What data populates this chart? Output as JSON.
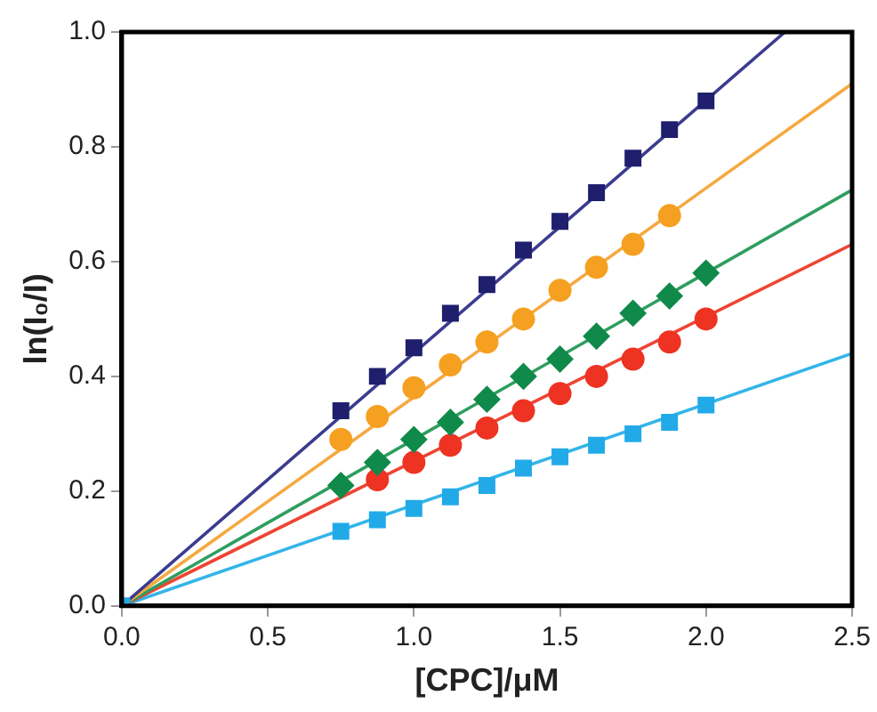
{
  "chart_data": {
    "type": "scatter",
    "xlabel": "[CPC]/μM",
    "ylabel": "ln(I₀/I)",
    "xlim": [
      0,
      2.5
    ],
    "xticks": [
      {
        "value": 0,
        "label": "0.0"
      },
      {
        "value": 0.5,
        "label": "0.5"
      },
      {
        "value": 1,
        "label": "1.0"
      },
      {
        "value": 1.5,
        "label": "1.5"
      },
      {
        "value": 2,
        "label": "2.0"
      },
      {
        "value": 2.5,
        "label": "2.5"
      }
    ],
    "ylim": [
      0,
      1
    ],
    "yticks": [
      {
        "value": 0,
        "label": "0.0"
      },
      {
        "value": 0.2,
        "label": "0.2"
      },
      {
        "value": 0.4,
        "label": "0.4"
      },
      {
        "value": 0.6,
        "label": "0.6"
      },
      {
        "value": 0.8,
        "label": "0.8"
      },
      {
        "value": 1,
        "label": "1.0"
      }
    ],
    "grid": false,
    "legend": false,
    "series": [
      {
        "type": "line",
        "marker": "none",
        "color": "#3b3b8f",
        "x": [
          0,
          2.27
        ],
        "values": [
          0,
          1
        ]
      },
      {
        "type": "line",
        "marker": "none",
        "color": "#f5a940",
        "x": [
          0,
          2.5
        ],
        "values": [
          0,
          0.91
        ]
      },
      {
        "type": "line",
        "marker": "none",
        "color": "#2e9e5e",
        "x": [
          0,
          2.5
        ],
        "values": [
          0,
          0.725
        ]
      },
      {
        "type": "line",
        "marker": "none",
        "color": "#ee4433",
        "x": [
          0,
          2.5
        ],
        "values": [
          0,
          0.63
        ]
      },
      {
        "type": "line",
        "marker": "none",
        "color": "#33b5e8",
        "x": [
          0,
          2.5
        ],
        "values": [
          0,
          0.44
        ]
      },
      {
        "marker": "square",
        "color": "#1f1f6e",
        "x": [
          0.75,
          0.875,
          1,
          1.125,
          1.25,
          1.375,
          1.5,
          1.625,
          1.75,
          1.875,
          2
        ],
        "values": [
          0.34,
          0.4,
          0.45,
          0.51,
          0.56,
          0.62,
          0.67,
          0.72,
          0.78,
          0.83,
          0.88
        ]
      },
      {
        "marker": "circle",
        "color": "#f5a020",
        "x": [
          0.75,
          0.875,
          1,
          1.125,
          1.25,
          1.375,
          1.5,
          1.625,
          1.75,
          1.875
        ],
        "values": [
          0.29,
          0.33,
          0.38,
          0.42,
          0.46,
          0.5,
          0.55,
          0.59,
          0.63,
          0.68
        ]
      },
      {
        "marker": "diamond",
        "color": "#108a4a",
        "x": [
          0.75,
          0.875,
          1,
          1.125,
          1.25,
          1.375,
          1.5,
          1.625,
          1.75,
          1.875,
          2
        ],
        "values": [
          0.21,
          0.25,
          0.29,
          0.32,
          0.36,
          0.4,
          0.43,
          0.47,
          0.51,
          0.54,
          0.58
        ]
      },
      {
        "marker": "circle",
        "color": "#ee3322",
        "x": [
          0.875,
          1,
          1.125,
          1.25,
          1.375,
          1.5,
          1.625,
          1.75,
          1.875,
          2
        ],
        "values": [
          0.22,
          0.25,
          0.28,
          0.31,
          0.34,
          0.37,
          0.4,
          0.43,
          0.46,
          0.5
        ]
      },
      {
        "marker": "square",
        "color": "#22aae8",
        "x": [
          0,
          0.75,
          0.875,
          1,
          1.125,
          1.25,
          1.375,
          1.5,
          1.625,
          1.75,
          1.875,
          2
        ],
        "values": [
          0,
          0.13,
          0.15,
          0.17,
          0.19,
          0.21,
          0.24,
          0.26,
          0.28,
          0.3,
          0.32,
          0.35
        ]
      }
    ]
  }
}
